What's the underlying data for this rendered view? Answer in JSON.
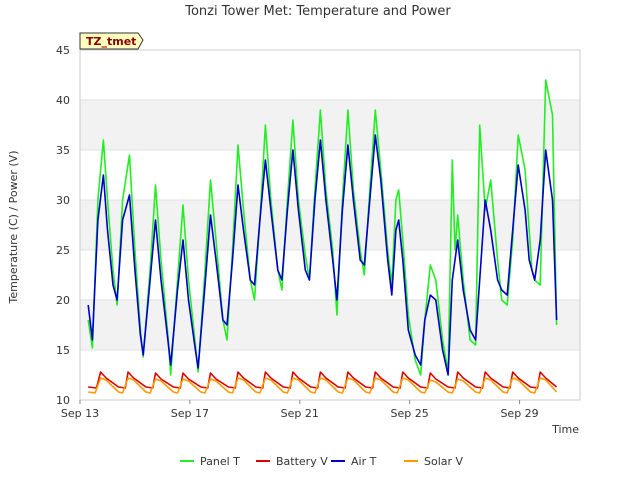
{
  "chart_data": {
    "type": "line",
    "title": "Tonzi Tower Met: Temperature and Power",
    "badge": "TZ_tmet",
    "xlabel": "Time",
    "ylabel": "Temperature (C) / Power (V)",
    "xlim": [
      0,
      18.2
    ],
    "ylim": [
      10,
      45
    ],
    "yticks": [
      10,
      15,
      20,
      25,
      30,
      35,
      40,
      45
    ],
    "xticks": [
      {
        "value": 0,
        "label": "Sep 13"
      },
      {
        "value": 4,
        "label": "Sep 17"
      },
      {
        "value": 8,
        "label": "Sep 21"
      },
      {
        "value": 12,
        "label": "Sep 25"
      },
      {
        "value": 16,
        "label": "Sep 29"
      }
    ],
    "grid_bands": true,
    "legend_position": "bottom",
    "series": [
      {
        "name": "Panel T",
        "color": "#22ee22",
        "x": [
          0.3,
          0.45,
          0.65,
          0.85,
          1.0,
          1.2,
          1.35,
          1.55,
          1.8,
          2.0,
          2.2,
          2.3,
          2.55,
          2.75,
          2.95,
          3.2,
          3.3,
          3.55,
          3.75,
          3.95,
          4.2,
          4.3,
          4.55,
          4.75,
          4.95,
          5.2,
          5.35,
          5.55,
          5.75,
          5.95,
          6.2,
          6.35,
          6.55,
          6.75,
          6.95,
          7.2,
          7.35,
          7.55,
          7.75,
          7.95,
          8.2,
          8.35,
          8.55,
          8.75,
          8.95,
          9.2,
          9.35,
          9.55,
          9.75,
          9.95,
          10.2,
          10.35,
          10.55,
          10.75,
          10.95,
          11.2,
          11.35,
          11.5,
          11.6,
          11.75,
          11.95,
          12.2,
          12.4,
          12.55,
          12.75,
          12.95,
          13.2,
          13.4,
          13.55,
          13.65,
          13.75,
          13.95,
          14.2,
          14.4,
          14.55,
          14.75,
          14.95,
          15.2,
          15.35,
          15.55,
          15.75,
          15.95,
          16.2,
          16.35,
          16.45,
          16.55,
          16.75,
          16.95,
          17.2,
          17.35
        ],
        "y": [
          18.0,
          15.2,
          30.0,
          36.0,
          30.0,
          23.0,
          19.5,
          30.0,
          34.5,
          25.0,
          17.0,
          14.3,
          23.0,
          31.5,
          24.0,
          16.5,
          12.5,
          22.0,
          29.5,
          22.0,
          15.5,
          12.8,
          23.0,
          32.0,
          26.0,
          18.0,
          16.0,
          25.0,
          35.5,
          29.0,
          22.0,
          20.0,
          28.0,
          37.5,
          30.0,
          23.0,
          21.0,
          30.0,
          38.0,
          30.0,
          24.5,
          22.0,
          31.0,
          39.0,
          31.0,
          25.0,
          18.5,
          30.0,
          39.0,
          31.0,
          25.0,
          22.5,
          31.0,
          39.0,
          33.0,
          25.0,
          21.5,
          30.0,
          31.0,
          26.0,
          18.5,
          14.0,
          12.5,
          18.0,
          23.5,
          22.0,
          16.0,
          12.8,
          34.0,
          25.0,
          28.5,
          22.0,
          16.0,
          15.5,
          37.5,
          29.0,
          32.0,
          24.0,
          20.0,
          19.5,
          26.0,
          36.5,
          33.0,
          27.0,
          23.0,
          22.0,
          21.5,
          42.0,
          38.5,
          17.5
        ]
      },
      {
        "name": "Battery V",
        "color": "#dd0000",
        "x": [
          0.3,
          0.6,
          0.75,
          0.95,
          1.4,
          1.65,
          1.75,
          1.95,
          2.4,
          2.65,
          2.75,
          2.95,
          3.4,
          3.65,
          3.75,
          3.95,
          4.4,
          4.65,
          4.75,
          4.95,
          5.4,
          5.65,
          5.75,
          5.95,
          6.4,
          6.65,
          6.75,
          6.95,
          7.4,
          7.65,
          7.75,
          7.95,
          8.4,
          8.65,
          8.75,
          8.95,
          9.4,
          9.65,
          9.75,
          9.95,
          10.4,
          10.65,
          10.75,
          10.95,
          11.4,
          11.65,
          11.75,
          11.95,
          12.4,
          12.65,
          12.75,
          12.95,
          13.4,
          13.65,
          13.75,
          13.95,
          14.4,
          14.65,
          14.75,
          14.95,
          15.4,
          15.65,
          15.75,
          15.95,
          16.4,
          16.65,
          16.75,
          16.95,
          17.35
        ],
        "y": [
          11.3,
          11.2,
          12.8,
          12.2,
          11.3,
          11.2,
          12.8,
          12.2,
          11.3,
          11.2,
          12.7,
          12.1,
          11.3,
          11.2,
          12.7,
          12.1,
          11.3,
          11.2,
          12.7,
          12.1,
          11.3,
          11.2,
          12.8,
          12.2,
          11.3,
          11.2,
          12.8,
          12.2,
          11.3,
          11.2,
          12.8,
          12.2,
          11.3,
          11.2,
          12.8,
          12.2,
          11.3,
          11.2,
          12.8,
          12.2,
          11.3,
          11.2,
          12.8,
          12.2,
          11.3,
          11.2,
          12.8,
          12.2,
          11.3,
          11.2,
          12.7,
          12.1,
          11.3,
          11.2,
          12.8,
          12.2,
          11.3,
          11.2,
          12.8,
          12.2,
          11.3,
          11.2,
          12.8,
          12.2,
          11.3,
          11.2,
          12.8,
          12.2,
          11.3
        ]
      },
      {
        "name": "Air T",
        "color": "#0000cc",
        "x": [
          0.3,
          0.45,
          0.65,
          0.85,
          1.0,
          1.2,
          1.35,
          1.55,
          1.8,
          2.0,
          2.2,
          2.3,
          2.55,
          2.75,
          2.95,
          3.2,
          3.3,
          3.55,
          3.75,
          3.95,
          4.2,
          4.3,
          4.55,
          4.75,
          4.95,
          5.2,
          5.35,
          5.55,
          5.75,
          5.95,
          6.2,
          6.35,
          6.55,
          6.75,
          6.95,
          7.2,
          7.35,
          7.55,
          7.75,
          7.95,
          8.2,
          8.35,
          8.55,
          8.75,
          8.95,
          9.2,
          9.35,
          9.55,
          9.75,
          9.95,
          10.2,
          10.35,
          10.55,
          10.75,
          10.95,
          11.2,
          11.35,
          11.5,
          11.6,
          11.75,
          11.95,
          12.2,
          12.4,
          12.55,
          12.75,
          12.95,
          13.2,
          13.4,
          13.55,
          13.75,
          13.95,
          14.2,
          14.4,
          14.55,
          14.75,
          14.95,
          15.2,
          15.35,
          15.55,
          15.75,
          15.95,
          16.2,
          16.35,
          16.55,
          16.75,
          16.95,
          17.2,
          17.35
        ],
        "y": [
          19.5,
          16.0,
          28.0,
          32.5,
          27.0,
          21.5,
          20.0,
          28.0,
          30.5,
          23.0,
          16.5,
          14.5,
          22.0,
          28.0,
          22.0,
          16.0,
          13.5,
          21.0,
          26.0,
          20.0,
          15.0,
          13.2,
          21.5,
          28.5,
          24.0,
          18.0,
          17.5,
          24.0,
          31.5,
          27.0,
          22.0,
          21.5,
          28.0,
          34.0,
          29.0,
          23.0,
          22.0,
          29.0,
          35.0,
          29.0,
          23.0,
          22.0,
          30.0,
          36.0,
          30.0,
          24.0,
          20.0,
          29.0,
          35.5,
          30.0,
          24.0,
          23.5,
          30.0,
          36.5,
          32.0,
          24.0,
          20.5,
          27.0,
          28.0,
          24.0,
          17.0,
          14.5,
          13.5,
          18.0,
          20.5,
          20.0,
          15.0,
          12.5,
          22.0,
          26.0,
          21.0,
          17.0,
          16.0,
          22.0,
          30.0,
          27.0,
          22.0,
          21.0,
          20.5,
          27.0,
          33.5,
          29.0,
          24.0,
          22.0,
          26.0,
          35.0,
          30.0,
          18.0
        ]
      },
      {
        "name": "Solar V",
        "color": "#ff9900",
        "x": [
          0.3,
          0.55,
          0.75,
          0.95,
          1.4,
          1.55,
          1.75,
          1.95,
          2.4,
          2.55,
          2.75,
          2.95,
          3.4,
          3.55,
          3.75,
          3.95,
          4.4,
          4.55,
          4.75,
          4.95,
          5.4,
          5.55,
          5.75,
          5.95,
          6.4,
          6.55,
          6.75,
          6.95,
          7.4,
          7.55,
          7.75,
          7.95,
          8.4,
          8.55,
          8.75,
          8.95,
          9.4,
          9.55,
          9.75,
          9.95,
          10.4,
          10.55,
          10.75,
          10.95,
          11.4,
          11.55,
          11.75,
          11.95,
          12.4,
          12.55,
          12.75,
          12.95,
          13.4,
          13.55,
          13.75,
          13.95,
          14.4,
          14.55,
          14.75,
          14.95,
          15.4,
          15.55,
          15.75,
          15.95,
          16.4,
          16.55,
          16.75,
          16.95,
          17.35
        ],
        "y": [
          10.8,
          10.7,
          12.2,
          12.0,
          10.8,
          10.7,
          12.2,
          12.0,
          10.8,
          10.7,
          12.1,
          11.9,
          10.8,
          10.7,
          12.1,
          11.9,
          10.8,
          10.7,
          12.1,
          11.9,
          10.8,
          10.7,
          12.2,
          12.0,
          10.8,
          10.7,
          12.2,
          12.0,
          10.8,
          10.7,
          12.2,
          12.0,
          10.8,
          10.7,
          12.2,
          12.0,
          10.8,
          10.7,
          12.2,
          12.0,
          10.8,
          10.7,
          12.2,
          12.0,
          10.8,
          10.7,
          12.2,
          12.0,
          10.8,
          10.7,
          12.0,
          11.8,
          10.8,
          10.7,
          12.1,
          11.9,
          10.8,
          10.7,
          12.2,
          12.0,
          10.8,
          10.7,
          12.2,
          12.0,
          10.8,
          10.7,
          12.2,
          12.0,
          10.8
        ]
      }
    ]
  }
}
